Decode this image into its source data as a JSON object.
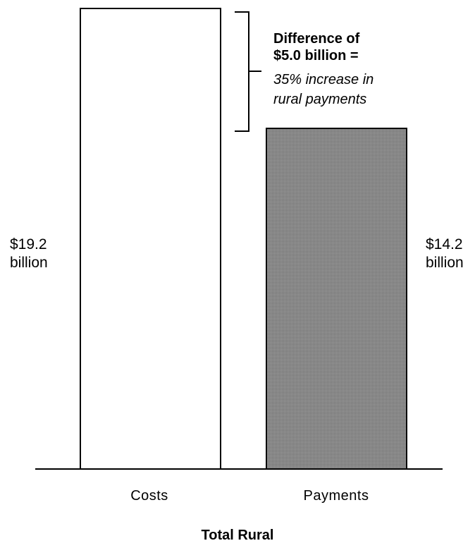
{
  "chart_data": {
    "type": "bar",
    "categories": [
      "Costs",
      "Payments"
    ],
    "values": [
      19.2,
      14.2
    ],
    "value_labels": [
      [
        "$19.2",
        "billion"
      ],
      [
        "$14.2",
        "billion"
      ]
    ],
    "xlabel": "Total Rural",
    "ylim": [
      0,
      19.2
    ],
    "colors": [
      "#ffffff",
      "#808080"
    ],
    "grid": false,
    "annotation": {
      "bold_lines": [
        "Difference of",
        "$5.0 billion ="
      ],
      "italic_lines": [
        "35% increase in",
        "rural payments"
      ]
    }
  }
}
